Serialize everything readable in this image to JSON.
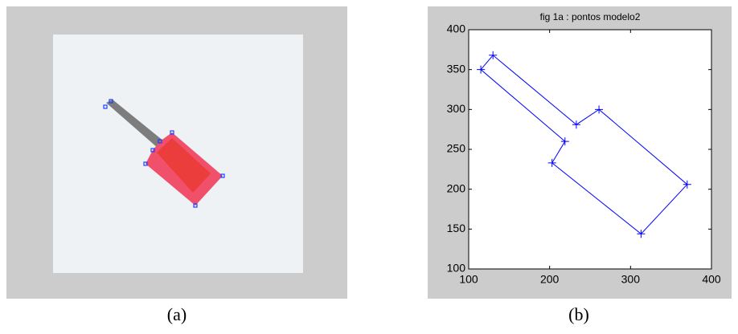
{
  "captions": [
    "(a)",
    "(b)"
  ],
  "chart_data": {
    "type": "line",
    "title": "fig 1a : pontos modelo2",
    "x": [
      115,
      130,
      233,
      261,
      370,
      313,
      203,
      219
    ],
    "values": [
      350,
      368,
      281,
      300,
      206,
      144,
      233,
      260
    ],
    "closed": true,
    "marker": "+",
    "color": "#0000ff",
    "xlim": [
      100,
      400
    ],
    "xticks": [
      100,
      200,
      300,
      400
    ],
    "ylim": [
      100,
      400
    ],
    "yticks": [
      100,
      150,
      200,
      250,
      300,
      350,
      400
    ],
    "grid": false
  }
}
